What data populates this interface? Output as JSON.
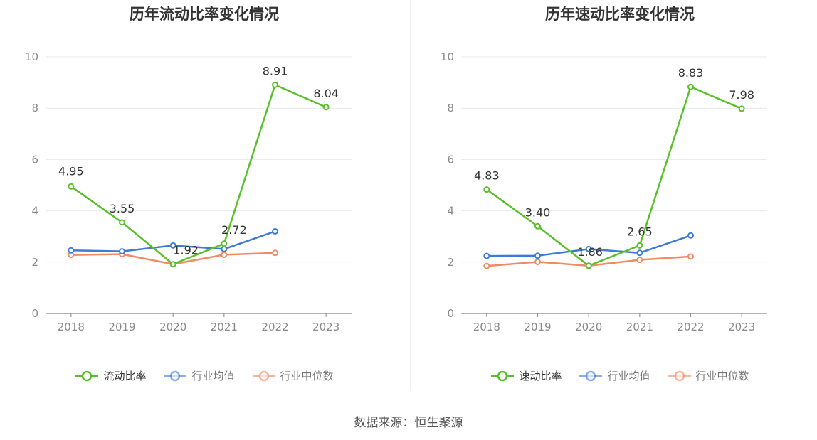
{
  "source_label": "数据来源：恒生聚源",
  "chart_data": [
    {
      "type": "line",
      "title": "历年流动比率变化情况",
      "x": [
        "2018",
        "2019",
        "2020",
        "2021",
        "2022",
        "2023"
      ],
      "ylim": [
        0,
        10
      ],
      "yticks": [
        0,
        2,
        4,
        6,
        8,
        10
      ],
      "grid": true,
      "legend_position": "bottom-center",
      "series": [
        {
          "name": "流动比率",
          "color": "#5ac02a",
          "values": [
            4.95,
            3.55,
            1.92,
            2.72,
            8.91,
            8.04
          ],
          "labels": [
            "4.95",
            "3.55",
            "1.92",
            "2.72",
            "8.91",
            "8.04"
          ]
        },
        {
          "name": "行业均值",
          "color": "#3e7ad8",
          "values": [
            2.46,
            2.42,
            2.65,
            2.51,
            3.2,
            null
          ]
        },
        {
          "name": "行业中位数",
          "color": "#f08a62",
          "values": [
            2.28,
            2.31,
            1.92,
            2.29,
            2.36,
            null
          ]
        }
      ]
    },
    {
      "type": "line",
      "title": "历年速动比率变化情况",
      "x": [
        "2018",
        "2019",
        "2020",
        "2021",
        "2022",
        "2023"
      ],
      "ylim": [
        0,
        10
      ],
      "yticks": [
        0,
        2,
        4,
        6,
        8,
        10
      ],
      "grid": true,
      "legend_position": "bottom-center",
      "series": [
        {
          "name": "速动比率",
          "color": "#5ac02a",
          "values": [
            4.83,
            3.4,
            1.86,
            2.65,
            8.83,
            7.98
          ],
          "labels": [
            "4.83",
            "3.40",
            "1.86",
            "2.65",
            "8.83",
            "7.98"
          ]
        },
        {
          "name": "行业均值",
          "color": "#3e7ad8",
          "values": [
            2.24,
            2.25,
            2.51,
            2.36,
            3.04,
            null
          ]
        },
        {
          "name": "行业中位数",
          "color": "#f08a62",
          "values": [
            1.85,
            2.01,
            1.86,
            2.09,
            2.22,
            null
          ]
        }
      ]
    }
  ]
}
